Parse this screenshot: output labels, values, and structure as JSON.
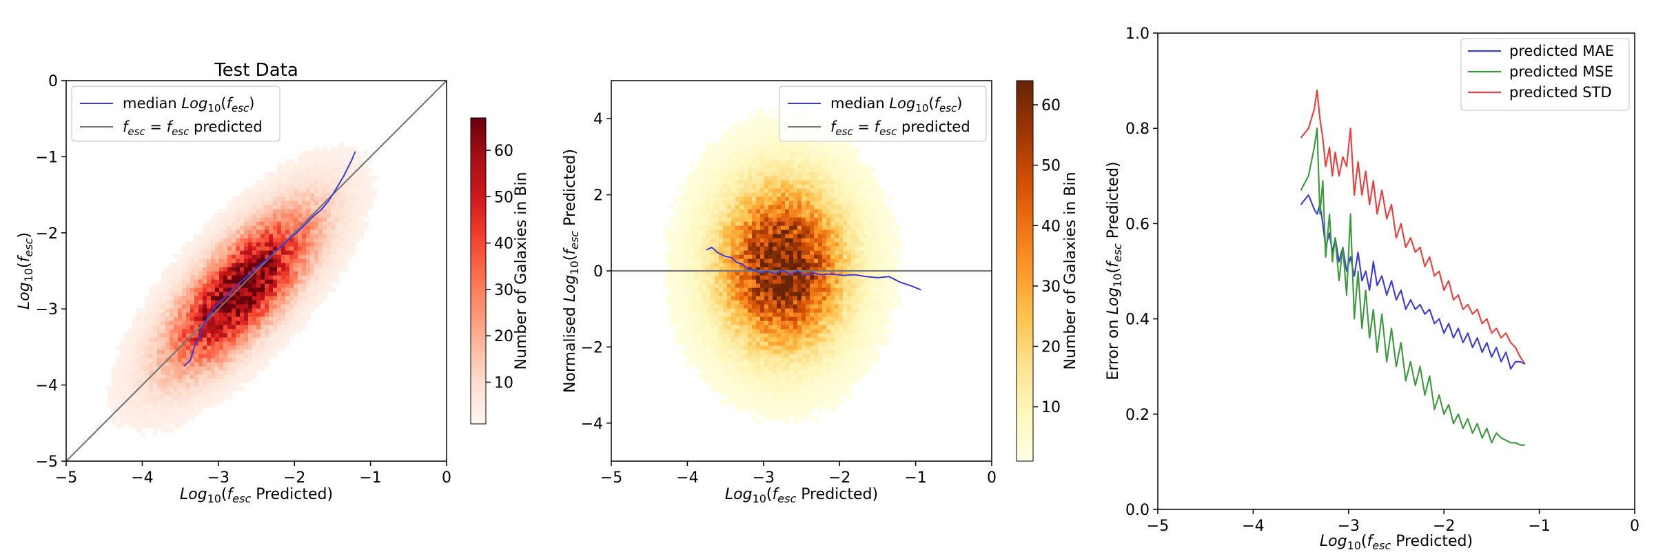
{
  "chart_data": [
    {
      "type": "heatmap",
      "title": "Test Data",
      "xlabel": "Log10(f_esc Predicted)",
      "ylabel": "Log10(f_esc)",
      "xlim": [
        -5,
        0
      ],
      "ylim": [
        -5,
        0
      ],
      "xticks": [
        "−5",
        "−4",
        "−3",
        "−2",
        "−1",
        "0"
      ],
      "yticks": [
        "−5",
        "−4",
        "−3",
        "−2",
        "−1",
        "0"
      ],
      "colormap": "Reds",
      "colorbar": {
        "label": "Number of Galaxies in Bin",
        "range": [
          1,
          67
        ],
        "ticks": [
          10,
          20,
          30,
          40,
          50,
          60
        ]
      },
      "density_model": {
        "center": [
          -2.7,
          -2.75
        ],
        "sigma_major": 0.85,
        "sigma_minor": 0.33,
        "angle_deg": 48,
        "peak": 67
      },
      "legend": [
        {
          "label": "median Log10(f_esc)",
          "color": "#3a3adb"
        },
        {
          "label": "f_esc = f_esc predicted",
          "color": "#777777"
        }
      ],
      "legend_position": "upper-left",
      "series": [
        {
          "name": "median Log10(f_esc)",
          "color": "#3a3adb",
          "x": [
            -3.45,
            -3.37,
            -3.3,
            -3.25,
            -3.2,
            -3.12,
            -3.05,
            -2.95,
            -2.85,
            -2.75,
            -2.65,
            -2.55,
            -2.45,
            -2.35,
            -2.25,
            -2.15,
            -2.05,
            -1.95,
            -1.85,
            -1.75,
            -1.65,
            -1.55,
            -1.45,
            -1.35,
            -1.25,
            -1.2
          ],
          "y": [
            -3.75,
            -3.68,
            -3.45,
            -3.38,
            -3.22,
            -3.08,
            -2.98,
            -2.88,
            -2.78,
            -2.68,
            -2.6,
            -2.5,
            -2.42,
            -2.34,
            -2.24,
            -2.16,
            -2.06,
            -1.98,
            -1.88,
            -1.78,
            -1.7,
            -1.58,
            -1.42,
            -1.25,
            -1.05,
            -0.93
          ]
        },
        {
          "name": "f_esc = f_esc predicted",
          "color": "#777777",
          "x": [
            -5,
            0
          ],
          "y": [
            -5,
            0
          ]
        }
      ]
    },
    {
      "type": "heatmap",
      "title": "",
      "xlabel": "Log10(f_esc Predicted)",
      "ylabel": "Normalised Log10(f_esc Predicted)",
      "xlim": [
        -5,
        0
      ],
      "ylim": [
        -5,
        5
      ],
      "xticks": [
        "−5",
        "−4",
        "−3",
        "−2",
        "−1",
        "0"
      ],
      "yticks": [
        "−4",
        "−2",
        "0",
        "2",
        "4"
      ],
      "colormap": "YlOrBr",
      "colorbar": {
        "label": "Number of Galaxies in Bin",
        "range": [
          1,
          64
        ],
        "ticks": [
          10,
          20,
          30,
          40,
          50,
          60
        ]
      },
      "density_model": {
        "center": [
          -2.75,
          0.1
        ],
        "sigma_x": 0.55,
        "sigma_y": 1.45,
        "peak": 64
      },
      "legend": [
        {
          "label": "median Log10(f_esc)",
          "color": "#3a3adb"
        },
        {
          "label": "f_esc = f_esc predicted",
          "color": "#777777"
        }
      ],
      "legend_position": "upper-right",
      "series": [
        {
          "name": "median Log10(f_esc)",
          "color": "#3a3adb",
          "x": [
            -3.75,
            -3.68,
            -3.6,
            -3.5,
            -3.42,
            -3.35,
            -3.28,
            -3.2,
            -3.12,
            -3.05,
            -2.95,
            -2.85,
            -2.75,
            -2.65,
            -2.55,
            -2.45,
            -2.35,
            -2.25,
            -2.1,
            -1.95,
            -1.8,
            -1.65,
            -1.5,
            -1.35,
            -1.2,
            -1.05,
            -0.93
          ],
          "y": [
            0.55,
            0.62,
            0.48,
            0.38,
            0.35,
            0.22,
            0.18,
            0.05,
            0.02,
            -0.05,
            0.0,
            -0.08,
            0.02,
            -0.1,
            0.0,
            -0.12,
            -0.05,
            -0.1,
            -0.08,
            -0.12,
            -0.1,
            -0.15,
            -0.18,
            -0.15,
            -0.3,
            -0.4,
            -0.5
          ]
        },
        {
          "name": "f_esc = f_esc predicted",
          "color": "#777777",
          "x": [
            -5,
            0
          ],
          "y": [
            0,
            0
          ]
        }
      ]
    },
    {
      "type": "line",
      "title": "",
      "xlabel": "Log10(f_esc Predicted)",
      "ylabel": "Error on Log10(f_esc Predicted)",
      "xlim": [
        -5,
        0
      ],
      "ylim": [
        0,
        1
      ],
      "xticks": [
        "−5",
        "−4",
        "−3",
        "−2",
        "−1",
        "0"
      ],
      "yticks": [
        "0.0",
        "0.2",
        "0.4",
        "0.6",
        "0.8",
        "1.0"
      ],
      "legend_position": "upper-right",
      "x": [
        -3.5,
        -3.42,
        -3.36,
        -3.33,
        -3.3,
        -3.27,
        -3.24,
        -3.2,
        -3.17,
        -3.14,
        -3.1,
        -3.06,
        -3.02,
        -2.98,
        -2.94,
        -2.9,
        -2.86,
        -2.82,
        -2.78,
        -2.74,
        -2.7,
        -2.65,
        -2.6,
        -2.55,
        -2.5,
        -2.45,
        -2.4,
        -2.35,
        -2.3,
        -2.25,
        -2.2,
        -2.15,
        -2.1,
        -2.05,
        -2.0,
        -1.95,
        -1.9,
        -1.85,
        -1.8,
        -1.75,
        -1.7,
        -1.65,
        -1.6,
        -1.55,
        -1.5,
        -1.45,
        -1.4,
        -1.35,
        -1.3,
        -1.25,
        -1.2,
        -1.15
      ],
      "series": [
        {
          "name": "predicted MAE",
          "color": "#3a3adb",
          "values": [
            0.64,
            0.66,
            0.63,
            0.62,
            0.64,
            0.6,
            0.55,
            0.58,
            0.54,
            0.57,
            0.52,
            0.55,
            0.5,
            0.53,
            0.49,
            0.54,
            0.48,
            0.5,
            0.46,
            0.52,
            0.47,
            0.49,
            0.45,
            0.48,
            0.44,
            0.46,
            0.42,
            0.44,
            0.42,
            0.43,
            0.41,
            0.42,
            0.39,
            0.4,
            0.37,
            0.39,
            0.36,
            0.38,
            0.35,
            0.37,
            0.34,
            0.36,
            0.33,
            0.35,
            0.32,
            0.34,
            0.31,
            0.33,
            0.295,
            0.31,
            0.31,
            0.305
          ]
        },
        {
          "name": "predicted MSE",
          "color": "#3a9a3a",
          "values": [
            0.67,
            0.7,
            0.76,
            0.8,
            0.62,
            0.69,
            0.53,
            0.62,
            0.52,
            0.57,
            0.48,
            0.55,
            0.45,
            0.62,
            0.4,
            0.5,
            0.38,
            0.46,
            0.36,
            0.42,
            0.33,
            0.41,
            0.31,
            0.38,
            0.3,
            0.35,
            0.27,
            0.31,
            0.26,
            0.3,
            0.24,
            0.28,
            0.21,
            0.24,
            0.2,
            0.22,
            0.18,
            0.2,
            0.17,
            0.19,
            0.16,
            0.18,
            0.15,
            0.17,
            0.14,
            0.16,
            0.15,
            0.145,
            0.14,
            0.14,
            0.135,
            0.135
          ]
        },
        {
          "name": "predicted STD",
          "color": "#ee3b3b",
          "values": [
            0.78,
            0.8,
            0.84,
            0.88,
            0.82,
            0.78,
            0.72,
            0.76,
            0.7,
            0.75,
            0.7,
            0.74,
            0.72,
            0.8,
            0.66,
            0.73,
            0.66,
            0.71,
            0.64,
            0.69,
            0.62,
            0.67,
            0.61,
            0.64,
            0.57,
            0.6,
            0.55,
            0.57,
            0.54,
            0.55,
            0.51,
            0.53,
            0.49,
            0.5,
            0.46,
            0.48,
            0.44,
            0.45,
            0.42,
            0.43,
            0.41,
            0.42,
            0.39,
            0.4,
            0.37,
            0.38,
            0.36,
            0.37,
            0.35,
            0.34,
            0.32,
            0.305
          ]
        }
      ]
    }
  ]
}
